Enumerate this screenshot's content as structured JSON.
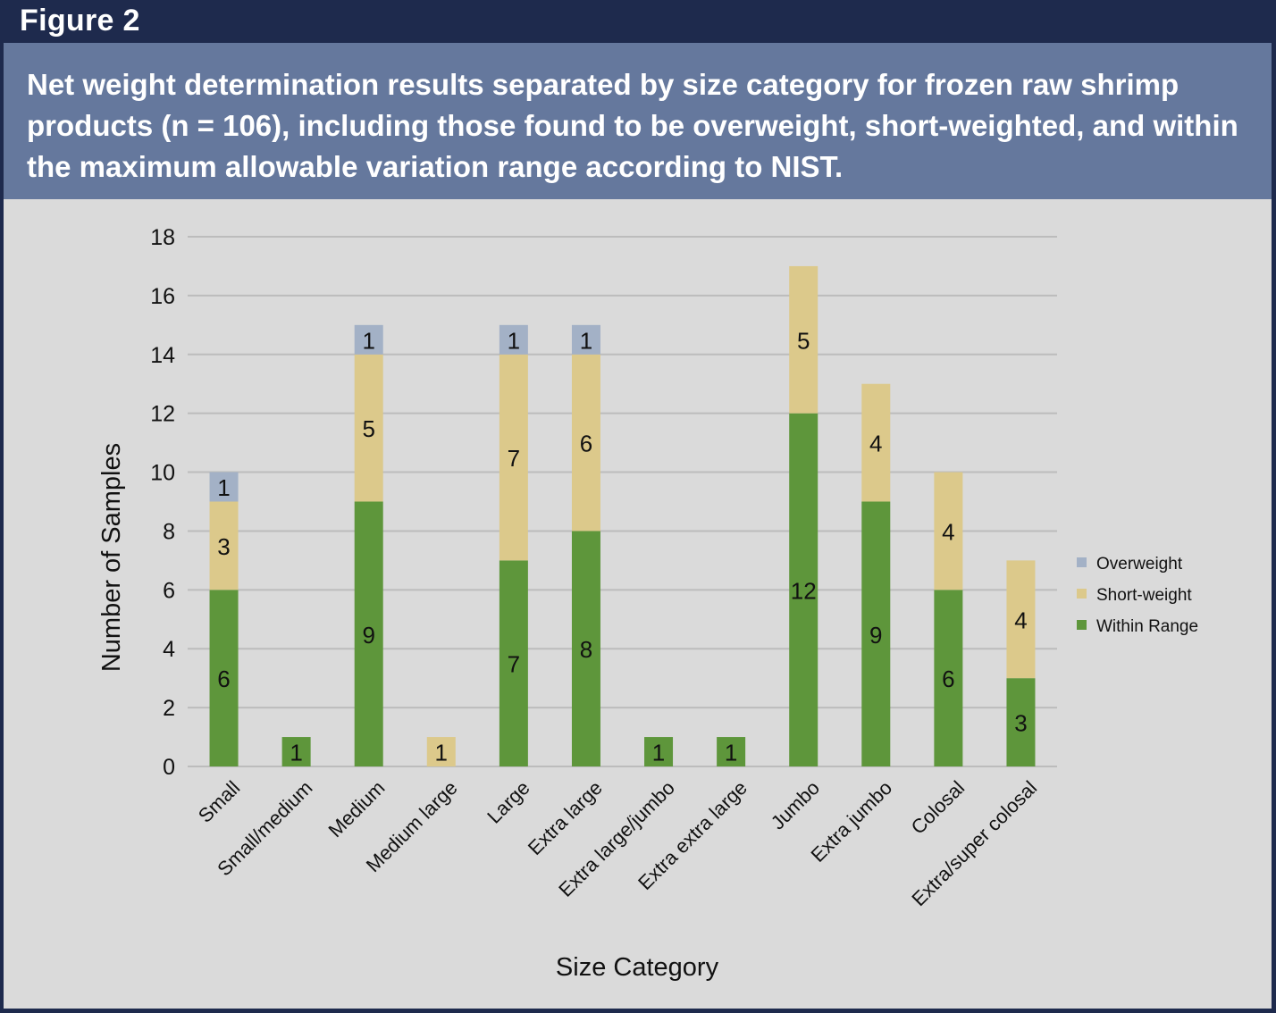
{
  "figure_label": "Figure 2",
  "caption": "Net weight determination results separated by size category for frozen raw shrimp products (n = 106), including those found to be overweight, short-weighted, and within the maximum allowable variation range according to NIST.",
  "colors": {
    "frame": "#1e2a4d",
    "caption_bg": "#65789d",
    "plot_bg": "#dadada",
    "gridline": "#bcbcbc",
    "Within Range": "#5e963b",
    "Short-weight": "#dcc98b",
    "Overweight": "#a3b1c6"
  },
  "chart_data": {
    "type": "bar",
    "stacked": true,
    "title": "",
    "xlabel": "Size Category",
    "ylabel": "Number of Samples",
    "ylim": [
      0,
      18
    ],
    "yticks": [
      0,
      2,
      4,
      6,
      8,
      10,
      12,
      14,
      16,
      18
    ],
    "grid": true,
    "legend_position": "right",
    "categories": [
      "Small",
      "Small/medium",
      "Medium",
      "Medium large",
      "Large",
      "Extra large",
      "Extra large/jumbo",
      "Extra extra large",
      "Jumbo",
      "Extra jumbo",
      "Colosal",
      "Extra/super colosal"
    ],
    "series": [
      {
        "name": "Within Range",
        "values": [
          6,
          1,
          9,
          0,
          7,
          8,
          1,
          1,
          12,
          9,
          6,
          3
        ]
      },
      {
        "name": "Short-weight",
        "values": [
          3,
          0,
          5,
          1,
          7,
          6,
          0,
          0,
          5,
          4,
          4,
          4
        ]
      },
      {
        "name": "Overweight",
        "values": [
          1,
          0,
          1,
          0,
          1,
          1,
          0,
          0,
          0,
          0,
          0,
          0
        ]
      }
    ],
    "legend_order": [
      "Overweight",
      "Short-weight",
      "Within Range"
    ]
  }
}
